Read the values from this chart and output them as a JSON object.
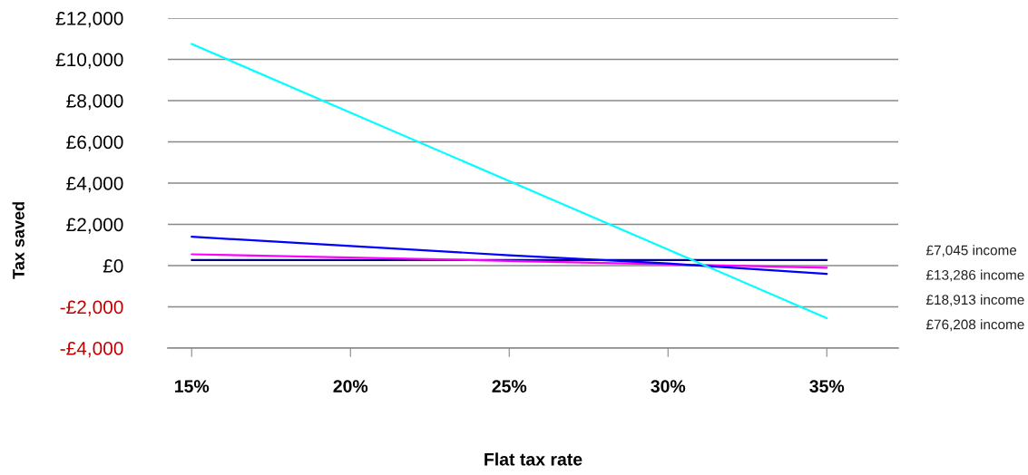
{
  "chart_data": {
    "type": "line",
    "xlabel": "Flat tax rate",
    "ylabel": "Tax saved",
    "categories": [
      "15%",
      "20%",
      "25%",
      "30%",
      "35%"
    ],
    "series": [
      {
        "name": "£7,045 income",
        "color": "#000080",
        "values": [
          270,
          270,
          270,
          270,
          270
        ]
      },
      {
        "name": "£13,286 income",
        "color": "#ff00ff",
        "values": [
          550,
          390,
          230,
          60,
          -100
        ]
      },
      {
        "name": "£18,913 income",
        "color": "#0000ff",
        "values": [
          1400,
          950,
          500,
          100,
          -400
        ]
      },
      {
        "name": "£76,208 income",
        "color": "#00ffff",
        "values": [
          10750,
          7420,
          4100,
          780,
          -2550
        ]
      }
    ],
    "ylim": [
      -4000,
      12000
    ],
    "yticks": [
      {
        "value": -4000,
        "label": "-£4,000"
      },
      {
        "value": -2000,
        "label": "-£2,000"
      },
      {
        "value": 0,
        "label": "£0"
      },
      {
        "value": 2000,
        "label": "£2,000"
      },
      {
        "value": 4000,
        "label": "£4,000"
      },
      {
        "value": 6000,
        "label": "£6,000"
      },
      {
        "value": 8000,
        "label": "£8,000"
      },
      {
        "value": 10000,
        "label": "£10,000"
      },
      {
        "value": 12000,
        "label": "£12,000"
      }
    ],
    "grid": "y",
    "marker": "none",
    "line_style": "solid"
  }
}
